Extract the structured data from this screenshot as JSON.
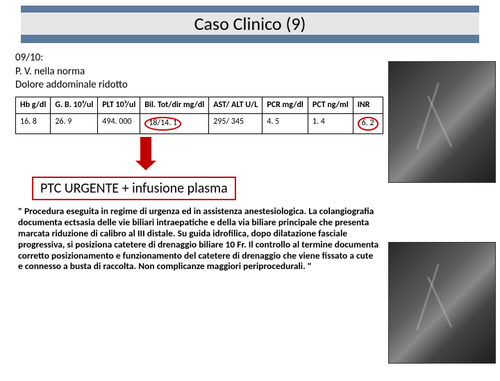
{
  "title": "Caso Clinico (9)",
  "notes": {
    "line1": "09/10:",
    "line2": "P. V. nella norma",
    "line3": "Dolore addominale ridotto"
  },
  "table": {
    "headers": {
      "c1": "Hb g/dl",
      "c2": "G. B. 10³/ul",
      "c3": "PLT 10³/ul",
      "c4": "Bil. Tot/dir mg/dl",
      "c5": "AST/ ALT U/L",
      "c6": "PCR mg/dl",
      "c7": "PCT ng/ml",
      "c8": "INR"
    },
    "row": {
      "c1": "16. 8",
      "c2": "26. 9",
      "c3": "494. 000",
      "c4": "18/14. 1",
      "c5": "295/ 345",
      "c6": "4. 5",
      "c7": "1. 4",
      "c8": "6. 2"
    }
  },
  "highlight": "PTC URGENTE + infusione plasma",
  "quote": "\" Procedura eseguita in regime di urgenza ed in assistenza anestesiologica. La colangiografia documenta ectsasia delle vie biliari intraepatiche e della via biliare principale che presenta marcata riduzione di calibro al III distale. Su guida idrofilica, dopo dilatazione fasciale progressiva, si posiziona catetere di drenaggio biliare 10 Fr. Il controllo al termine documenta corretto posizionamento e funzionamento del catetere di drenaggio che viene fissato a cute e connesso a busta di raccolta. Non complicanze maggiori periprocedurali. \"",
  "styling": {
    "title_bg": "#5b7a9e",
    "title_text_bg": "#e6e6e6",
    "circle_border": "#c00",
    "arrow_color": "#c00000",
    "table_border": "#000000",
    "font_family": "Calibri"
  }
}
